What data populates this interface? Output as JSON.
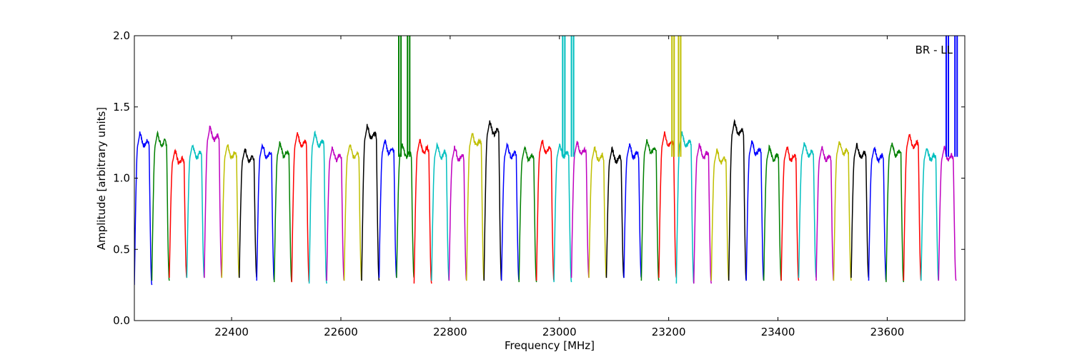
{
  "chart_data": {
    "type": "line",
    "xlabel": "Frequency [MHz]",
    "ylabel": "Amplitude [arbitrary units]",
    "xlim": [
      22222,
      23742
    ],
    "ylim": [
      0.0,
      2.0
    ],
    "x_ticks": [
      22400,
      22600,
      22800,
      23000,
      23200,
      23400,
      23600
    ],
    "x_tick_labels": [
      "22400",
      "22600",
      "22800",
      "23000",
      "23200",
      "23400",
      "23600"
    ],
    "y_ticks": [
      0.0,
      0.5,
      1.0,
      1.5,
      2.0
    ],
    "y_tick_labels": [
      "0.0",
      "0.5",
      "1.0",
      "1.5",
      "2.0"
    ],
    "annotation": "BR - LL",
    "grid": false,
    "colors": [
      "#0000ff",
      "#008000",
      "#ff0000",
      "#00bfbf",
      "#bf00bf",
      "#bfbf00",
      "#000000"
    ],
    "channel_width_mhz": 32,
    "channel_starts_mhz": [
      22222,
      22254,
      22286,
      22318,
      22350,
      22382,
      22414,
      22446,
      22478,
      22510,
      22542,
      22574,
      22606,
      22638,
      22670,
      22702,
      22734,
      22766,
      22798,
      22830,
      22862,
      22894,
      22926,
      22958,
      22990,
      23022,
      23054,
      23086,
      23118,
      23150,
      23182,
      23214,
      23246,
      23278,
      23310,
      23342,
      23374,
      23406,
      23438,
      23470,
      23502,
      23534,
      23566,
      23598,
      23630,
      23662,
      23694
    ],
    "channel_peaks": [
      1.3,
      1.3,
      1.18,
      1.22,
      1.34,
      1.22,
      1.19,
      1.22,
      1.23,
      1.3,
      1.3,
      1.2,
      1.22,
      1.35,
      1.25,
      1.22,
      1.25,
      1.22,
      1.2,
      1.3,
      1.38,
      1.22,
      1.2,
      1.25,
      1.22,
      1.24,
      1.2,
      1.19,
      1.22,
      1.25,
      1.3,
      1.3,
      1.22,
      1.18,
      1.38,
      1.24,
      1.2,
      1.2,
      1.23,
      1.2,
      1.24,
      1.22,
      1.2,
      1.23,
      1.29,
      1.2,
      1.2
    ],
    "channel_minima": [
      0.25,
      0.28,
      0.3,
      0.3,
      0.3,
      0.3,
      0.3,
      0.28,
      0.27,
      0.27,
      0.26,
      0.28,
      0.28,
      0.28,
      0.3,
      0.3,
      0.26,
      0.28,
      0.28,
      0.28,
      0.28,
      0.28,
      0.27,
      0.28,
      0.27,
      0.3,
      0.3,
      0.3,
      0.3,
      0.28,
      0.3,
      0.26,
      0.26,
      0.28,
      0.28,
      0.28,
      0.28,
      0.28,
      0.3,
      0.28,
      0.28,
      0.3,
      0.28,
      0.27,
      0.28,
      0.28,
      0.28
    ],
    "spikes": [
      {
        "x": [
          22706,
          22710
        ],
        "color": "#008000"
      },
      {
        "x": [
          22722,
          22726
        ],
        "color": "#008000"
      },
      {
        "x": [
          23006,
          23010
        ],
        "color": "#00bfbf"
      },
      {
        "x": [
          23022,
          23026
        ],
        "color": "#00bfbf"
      },
      {
        "x": [
          23206,
          23210
        ],
        "color": "#bfbf00"
      },
      {
        "x": [
          23218,
          23222
        ],
        "color": "#bfbf00"
      },
      {
        "x": [
          23708,
          23712
        ],
        "color": "#0000ff"
      },
      {
        "x": [
          23724,
          23728
        ],
        "color": "#0000ff"
      }
    ]
  }
}
